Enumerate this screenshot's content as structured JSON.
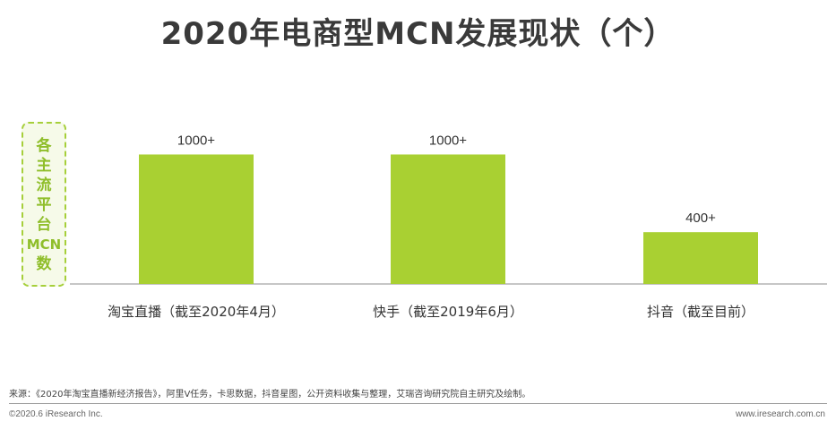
{
  "chart_data": {
    "type": "bar",
    "title": "2020年电商型MCN发展现状（个）",
    "ylabel": "各主流平台MCN数",
    "categories": [
      "淘宝直播（截至2020年4月）",
      "快手（截至2019年6月）",
      "抖音（截至目前）"
    ],
    "values": [
      1000,
      1000,
      400
    ],
    "data_labels": [
      "1000+",
      "1000+",
      "400+"
    ],
    "ylim": [
      0,
      1100
    ],
    "grid": false,
    "bar_color": "#a9d032"
  },
  "footer": {
    "source": "来源：《2020年淘宝直播新经济报告》，阿里V任务，卡思数据，抖音星图，公开资料收集与整理，艾瑞咨询研究院自主研究及绘制。",
    "copyright": "©2020.6 iResearch Inc.",
    "website": "www.iresearch.com.cn"
  }
}
